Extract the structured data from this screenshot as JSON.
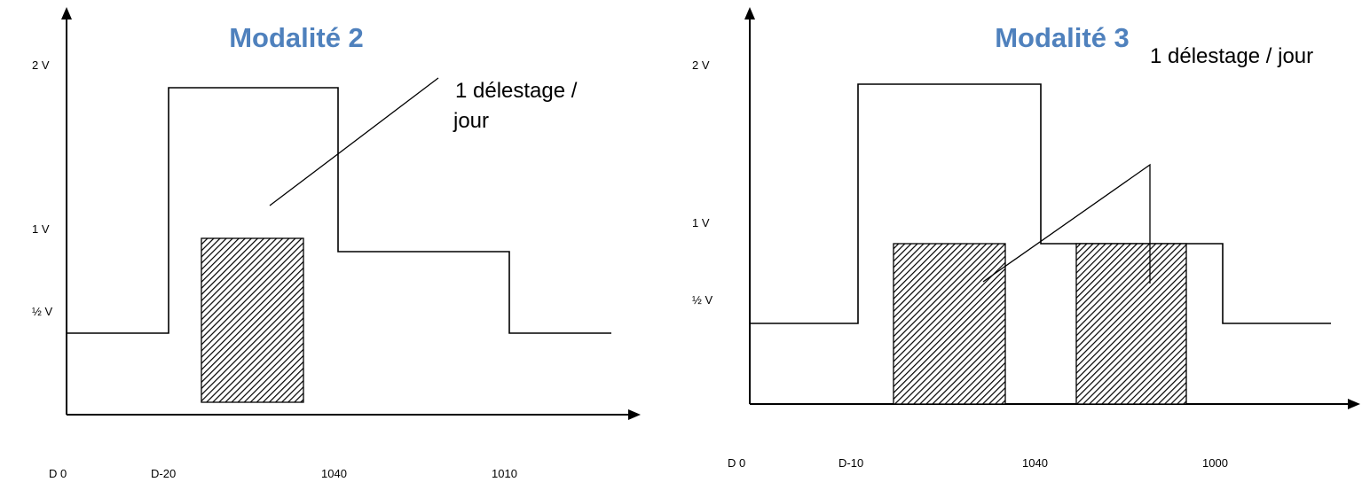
{
  "panels": [
    {
      "title": "Modalité 2",
      "y_labels": [
        "2 V",
        "1 V",
        "½ V"
      ],
      "x_labels": [
        "D 0",
        "D-20",
        "1040",
        "1010"
      ],
      "note_lines": [
        "1 délestage /",
        "jour"
      ]
    },
    {
      "title": "Modalité 3",
      "y_labels": [
        "2 V",
        "1 V",
        "½ V"
      ],
      "x_labels": [
        "D 0",
        "D-10",
        "1040",
        "1000"
      ],
      "note_lines": [
        "1 délestage / jour"
      ]
    }
  ]
}
